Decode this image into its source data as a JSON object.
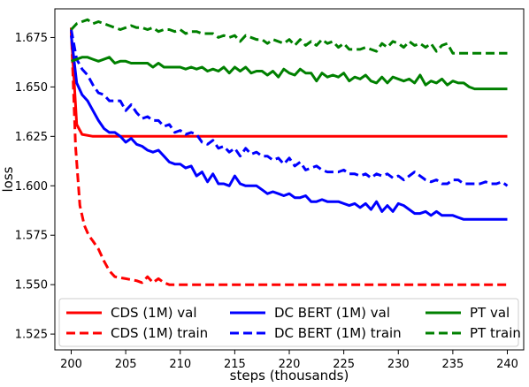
{
  "chart_data": {
    "type": "line",
    "xlabel": "steps (thousands)",
    "ylabel": "loss",
    "xlim": [
      198.5,
      241.5
    ],
    "ylim": [
      1.517,
      1.6895
    ],
    "xticks": [
      200,
      205,
      210,
      215,
      220,
      225,
      230,
      235,
      240
    ],
    "yticks": [
      1.525,
      1.55,
      1.575,
      1.6,
      1.625,
      1.65,
      1.675
    ],
    "ytick_labels": [
      "1.525",
      "1.550",
      "1.575",
      "1.600",
      "1.625",
      "1.650",
      "1.675"
    ],
    "grid": false,
    "legend_position": "lower center",
    "series": [
      {
        "name": "CDS (1M) val",
        "color": "#ff0000",
        "dash": "solid",
        "x": [
          200,
          200.5,
          201,
          202,
          203,
          205,
          210,
          215,
          220,
          225,
          230,
          235,
          240
        ],
        "y": [
          1.678,
          1.631,
          1.626,
          1.625,
          1.625,
          1.625,
          1.625,
          1.625,
          1.625,
          1.625,
          1.625,
          1.625,
          1.625
        ]
      },
      {
        "name": "CDS (1M) train",
        "color": "#ff0000",
        "dash": "dashed",
        "x": [
          200,
          200.4,
          200.8,
          201.2,
          201.6,
          202,
          202.5,
          203,
          203.5,
          204,
          205,
          206,
          206.5,
          207,
          207.5,
          208,
          208.5,
          209,
          210,
          215,
          220,
          225,
          230,
          235,
          240
        ],
        "y": [
          1.68,
          1.62,
          1.59,
          1.58,
          1.575,
          1.572,
          1.568,
          1.562,
          1.557,
          1.554,
          1.553,
          1.552,
          1.551,
          1.554,
          1.551,
          1.553,
          1.551,
          1.55,
          1.55,
          1.55,
          1.55,
          1.55,
          1.55,
          1.55,
          1.55
        ]
      },
      {
        "name": "DC BERT (1M) val",
        "color": "#0000ff",
        "dash": "solid",
        "x": [
          200,
          200.5,
          201,
          201.5,
          202,
          202.5,
          203,
          203.5,
          204,
          204.5,
          205,
          205.5,
          206,
          206.5,
          207,
          207.5,
          208,
          208.5,
          209,
          209.5,
          210,
          210.5,
          211,
          211.5,
          212,
          212.5,
          213,
          213.5,
          214,
          214.5,
          215,
          215.5,
          216,
          216.5,
          217,
          217.5,
          218,
          218.5,
          219,
          219.5,
          220,
          220.5,
          221,
          221.5,
          222,
          222.5,
          223,
          223.5,
          224,
          224.5,
          225,
          225.5,
          226,
          226.5,
          227,
          227.5,
          228,
          228.5,
          229,
          229.5,
          230,
          230.5,
          231,
          231.5,
          232,
          232.5,
          233,
          233.5,
          234,
          234.5,
          235,
          235.5,
          236,
          240
        ],
        "y": [
          1.676,
          1.652,
          1.646,
          1.643,
          1.638,
          1.633,
          1.629,
          1.627,
          1.627,
          1.625,
          1.622,
          1.624,
          1.621,
          1.62,
          1.618,
          1.617,
          1.618,
          1.615,
          1.612,
          1.611,
          1.611,
          1.609,
          1.61,
          1.605,
          1.607,
          1.602,
          1.606,
          1.601,
          1.601,
          1.6,
          1.605,
          1.601,
          1.6,
          1.6,
          1.6,
          1.598,
          1.596,
          1.597,
          1.596,
          1.595,
          1.596,
          1.594,
          1.594,
          1.595,
          1.592,
          1.592,
          1.593,
          1.592,
          1.592,
          1.592,
          1.591,
          1.59,
          1.591,
          1.589,
          1.591,
          1.588,
          1.592,
          1.587,
          1.59,
          1.587,
          1.591,
          1.59,
          1.588,
          1.586,
          1.586,
          1.587,
          1.585,
          1.587,
          1.585,
          1.585,
          1.585,
          1.584,
          1.583,
          1.583
        ]
      },
      {
        "name": "DC BERT (1M) train",
        "color": "#0000ff",
        "dash": "dashed",
        "x": [
          200,
          200.5,
          201,
          201.5,
          202,
          202.5,
          203,
          203.5,
          204,
          204.5,
          205,
          205.5,
          206,
          206.5,
          207,
          207.5,
          208,
          208.5,
          209,
          209.5,
          210,
          210.5,
          211,
          211.5,
          212,
          212.5,
          213,
          213.5,
          214,
          214.5,
          215,
          215.5,
          216,
          216.5,
          217,
          217.5,
          218,
          218.5,
          219,
          219.5,
          220,
          220.5,
          221,
          221.5,
          222,
          222.5,
          223,
          223.5,
          224,
          224.5,
          225,
          225.5,
          226,
          226.5,
          227,
          227.5,
          228,
          228.5,
          229,
          229.5,
          230,
          230.5,
          231,
          231.5,
          232,
          232.5,
          233,
          233.5,
          234,
          234.5,
          235,
          235.5,
          236,
          236.5,
          237,
          237.5,
          238,
          238.5,
          239,
          239.5,
          240
        ],
        "y": [
          1.679,
          1.664,
          1.659,
          1.656,
          1.651,
          1.647,
          1.646,
          1.643,
          1.643,
          1.643,
          1.638,
          1.641,
          1.637,
          1.634,
          1.635,
          1.633,
          1.633,
          1.63,
          1.631,
          1.627,
          1.628,
          1.626,
          1.627,
          1.626,
          1.622,
          1.621,
          1.623,
          1.619,
          1.62,
          1.617,
          1.619,
          1.615,
          1.619,
          1.616,
          1.617,
          1.615,
          1.615,
          1.613,
          1.614,
          1.611,
          1.614,
          1.61,
          1.612,
          1.608,
          1.609,
          1.61,
          1.608,
          1.607,
          1.607,
          1.607,
          1.608,
          1.606,
          1.606,
          1.605,
          1.606,
          1.604,
          1.606,
          1.605,
          1.606,
          1.604,
          1.605,
          1.603,
          1.605,
          1.607,
          1.605,
          1.603,
          1.602,
          1.603,
          1.601,
          1.601,
          1.603,
          1.603,
          1.601,
          1.601,
          1.601,
          1.601,
          1.602,
          1.601,
          1.601,
          1.602,
          1.6
        ]
      },
      {
        "name": "PT val",
        "color": "#008000",
        "dash": "solid",
        "x": [
          200,
          200.5,
          201,
          201.5,
          202,
          202.5,
          203,
          203.5,
          204,
          204.5,
          205,
          205.5,
          206,
          206.5,
          207,
          207.5,
          208,
          208.5,
          209,
          209.5,
          210,
          210.5,
          211,
          211.5,
          212,
          212.5,
          213,
          213.5,
          214,
          214.5,
          215,
          215.5,
          216,
          216.5,
          217,
          217.5,
          218,
          218.5,
          219,
          219.5,
          220,
          220.5,
          221,
          221.5,
          222,
          222.5,
          223,
          223.5,
          224,
          224.5,
          225,
          225.5,
          226,
          226.5,
          227,
          227.5,
          228,
          228.5,
          229,
          229.5,
          230,
          230.5,
          231,
          231.5,
          232,
          232.5,
          233,
          233.5,
          234,
          234.5,
          235,
          235.5,
          236,
          236.5,
          237,
          240
        ],
        "y": [
          1.663,
          1.664,
          1.665,
          1.665,
          1.664,
          1.663,
          1.664,
          1.665,
          1.662,
          1.663,
          1.663,
          1.662,
          1.662,
          1.662,
          1.662,
          1.66,
          1.662,
          1.66,
          1.66,
          1.66,
          1.66,
          1.659,
          1.66,
          1.659,
          1.66,
          1.658,
          1.659,
          1.658,
          1.66,
          1.657,
          1.66,
          1.658,
          1.66,
          1.657,
          1.658,
          1.658,
          1.656,
          1.658,
          1.655,
          1.659,
          1.657,
          1.656,
          1.659,
          1.657,
          1.657,
          1.653,
          1.657,
          1.655,
          1.656,
          1.655,
          1.657,
          1.653,
          1.655,
          1.654,
          1.656,
          1.653,
          1.652,
          1.655,
          1.652,
          1.655,
          1.654,
          1.653,
          1.654,
          1.652,
          1.656,
          1.651,
          1.653,
          1.652,
          1.654,
          1.651,
          1.653,
          1.652,
          1.652,
          1.65,
          1.649,
          1.649
        ]
      },
      {
        "name": "PT train",
        "color": "#008000",
        "dash": "dashed",
        "x": [
          200,
          200.5,
          201,
          201.5,
          202,
          202.5,
          203,
          203.5,
          204,
          204.5,
          205,
          205.5,
          206,
          206.5,
          207,
          207.5,
          208,
          208.5,
          209,
          209.5,
          210,
          210.5,
          211,
          211.5,
          212,
          212.5,
          213,
          213.5,
          214,
          214.5,
          215,
          215.5,
          216,
          216.5,
          217,
          217.5,
          218,
          218.5,
          219,
          219.5,
          220,
          220.5,
          221,
          221.5,
          222,
          222.5,
          223,
          223.5,
          224,
          224.5,
          225,
          225.5,
          226,
          226.5,
          227,
          227.5,
          228,
          228.5,
          229,
          229.5,
          230,
          230.5,
          231,
          231.5,
          232,
          232.5,
          233,
          233.5,
          234,
          234.5,
          235,
          235.5,
          240
        ],
        "y": [
          1.679,
          1.682,
          1.683,
          1.684,
          1.682,
          1.683,
          1.682,
          1.681,
          1.68,
          1.679,
          1.68,
          1.681,
          1.68,
          1.68,
          1.679,
          1.68,
          1.678,
          1.679,
          1.679,
          1.678,
          1.679,
          1.677,
          1.678,
          1.678,
          1.677,
          1.677,
          1.677,
          1.675,
          1.676,
          1.675,
          1.676,
          1.673,
          1.676,
          1.675,
          1.674,
          1.674,
          1.672,
          1.674,
          1.673,
          1.672,
          1.674,
          1.671,
          1.674,
          1.671,
          1.673,
          1.671,
          1.674,
          1.672,
          1.673,
          1.67,
          1.672,
          1.669,
          1.669,
          1.669,
          1.67,
          1.669,
          1.668,
          1.672,
          1.67,
          1.673,
          1.672,
          1.67,
          1.673,
          1.671,
          1.672,
          1.67,
          1.672,
          1.668,
          1.671,
          1.672,
          1.667,
          1.667,
          1.667
        ]
      }
    ]
  }
}
